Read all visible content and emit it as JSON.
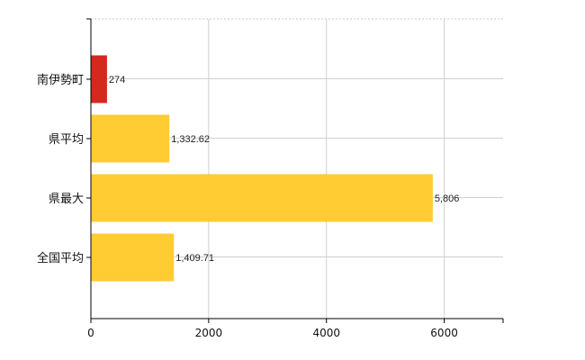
{
  "chart_data": {
    "type": "bar",
    "orientation": "horizontal",
    "categories": [
      "南伊勢町",
      "県平均",
      "県最大",
      "全国平均"
    ],
    "values": [
      274,
      1332.62,
      5806,
      1409.71
    ],
    "value_labels": [
      "274",
      "1,332.62",
      "5,806",
      "1,409.71"
    ],
    "bar_colors": [
      "#d42a1e",
      "#ffcc33",
      "#ffcc33",
      "#ffcc33"
    ],
    "xlim": [
      0,
      7000
    ],
    "x_ticks": [
      0,
      2000,
      4000,
      6000
    ],
    "x_tick_labels": [
      "0",
      "2000",
      "4000",
      "6000"
    ],
    "grid": true,
    "title": "",
    "xlabel": "",
    "ylabel": ""
  }
}
